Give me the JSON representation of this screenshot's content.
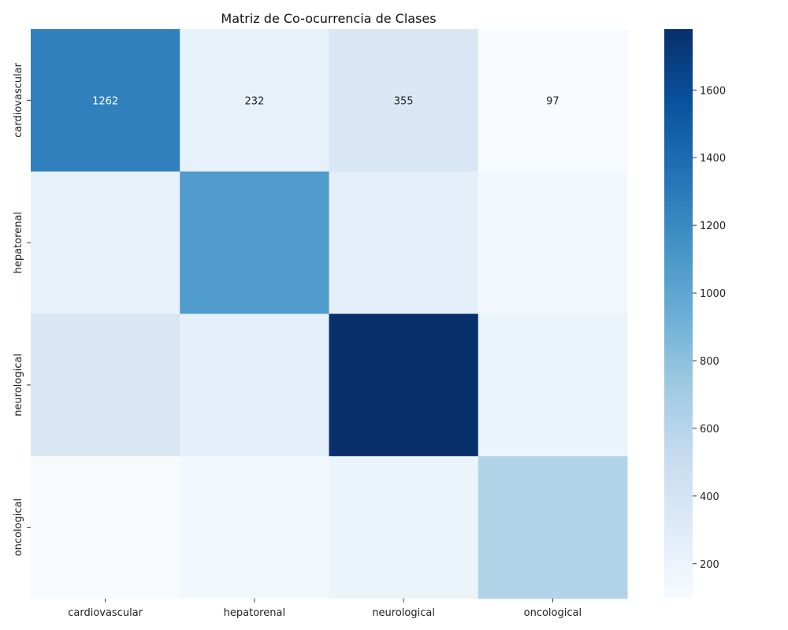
{
  "chart_data": {
    "type": "heatmap",
    "title": "Matriz de Co-ocurrencia de Clases",
    "xlabel": "",
    "ylabel": "",
    "x_categories": [
      "cardiovascular",
      "hepatorenal",
      "neurological",
      "oncological"
    ],
    "y_categories": [
      "cardiovascular",
      "hepatorenal",
      "neurological",
      "oncological"
    ],
    "values": [
      [
        1262,
        232,
        355,
        97
      ],
      [
        232,
        1080,
        260,
        140
      ],
      [
        355,
        260,
        1780,
        190
      ],
      [
        97,
        140,
        190,
        620
      ]
    ],
    "cell_labels": [
      [
        "1262",
        "232",
        "355",
        "97"
      ],
      [
        "",
        "",
        "",
        ""
      ],
      [
        "",
        "",
        "",
        ""
      ],
      [
        "",
        "",
        "",
        ""
      ]
    ],
    "colorbar": {
      "range": [
        97,
        1780
      ],
      "ticks": [
        "200",
        "400",
        "600",
        "800",
        "1000",
        "1200",
        "1400",
        "1600"
      ],
      "colormap": "Blues"
    }
  }
}
